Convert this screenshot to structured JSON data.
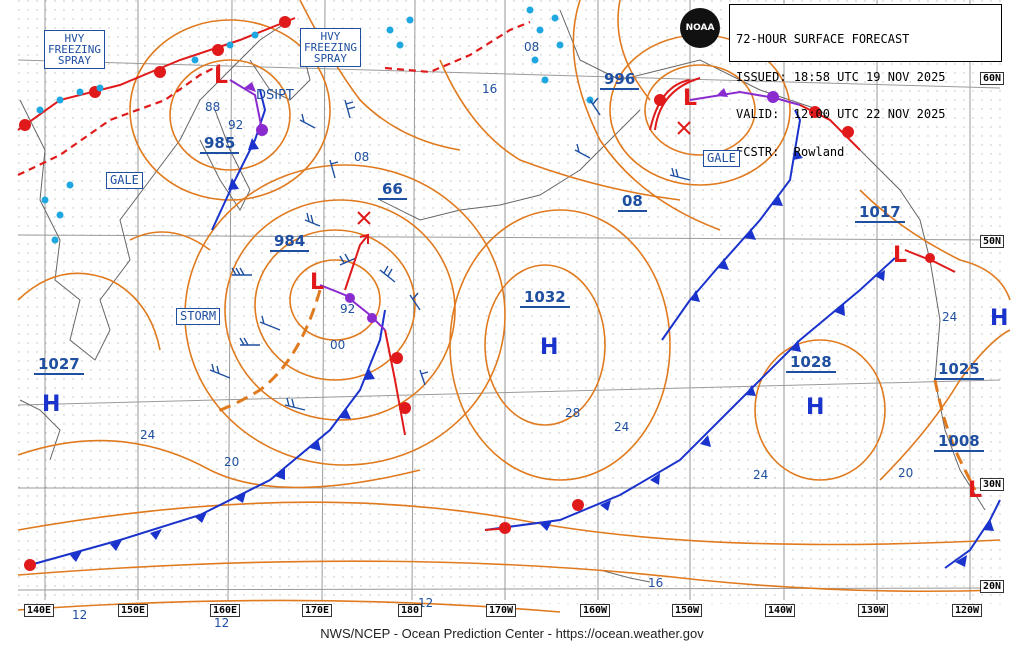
{
  "header": {
    "title": "72-HOUR SURFACE FORECAST",
    "issued": "ISSUED: 18:58 UTC 19 NOV 2025",
    "valid": "VALID:  12:00 UTC 22 NOV 2025",
    "forecaster": "FCSTR:  Rowland",
    "logo": "NOAA"
  },
  "credit": "NWS/NCEP - Ocean Prediction Center - https://ocean.weather.gov",
  "warnings": {
    "hvy_spray_w": "HVY\nFREEZING\nSPRAY",
    "hvy_spray_c": "HVY\nFREEZING\nSPRAY",
    "gale_w": "GALE",
    "gale_ak": "GALE",
    "storm": "STORM",
    "dsipt": "DSIPT"
  },
  "pressure_labels": {
    "p985": "985",
    "p984": "984",
    "p66": "66",
    "p996": "996",
    "p08": "08",
    "p1032": "1032",
    "p1017": "1017",
    "p1027": "1027",
    "p1028": "1028",
    "p1025": "1025",
    "p1008": "1008"
  },
  "centers": {
    "h_w": "H",
    "h_c": "H",
    "h_e": "H",
    "h_far": "H",
    "l_kam": "L",
    "l_storm": "L",
    "l_ak": "L",
    "l_bc": "L",
    "l_baja": "L"
  },
  "isobar_labels": {
    "i88": "88",
    "i92a": "92",
    "i92b": "92",
    "i08a": "08",
    "i08b": "08",
    "i16": "16",
    "i00": "00",
    "i24a": "24",
    "i24b": "24",
    "i24c": "24",
    "i24d": "24",
    "i20a": "20",
    "i20b": "20",
    "i28": "28",
    "i16b": "16",
    "i12a": "12",
    "i12b": "12",
    "i12c": "12"
  },
  "latitudes": [
    "60N",
    "50N",
    "30N",
    "20N"
  ],
  "longitudes": [
    "140E",
    "150E",
    "160E",
    "170E",
    "180",
    "170W",
    "160W",
    "150W",
    "140W",
    "130W",
    "120W"
  ],
  "colors": {
    "isobar": "#e07a1f",
    "cold_front": "#1a33cc",
    "warm_front": "#e01a1a",
    "occluded": "#8a2bd0",
    "text": "#1f4fa0",
    "ice": "#1ea7e0",
    "trough": "#e07a1f"
  }
}
